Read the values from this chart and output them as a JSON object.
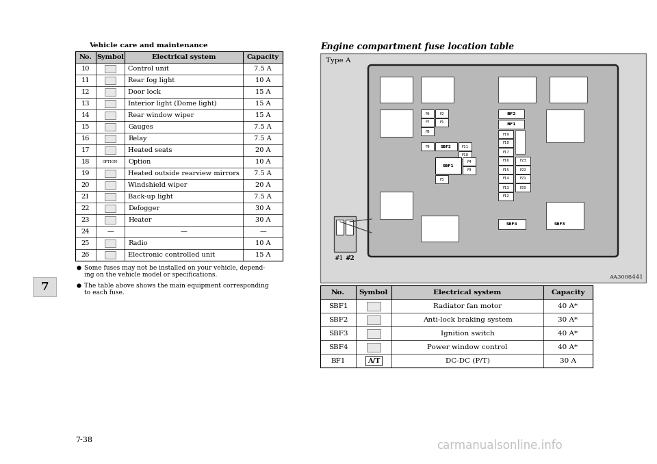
{
  "page_bg": "#ffffff",
  "section_header": "Vehicle care and maintenance",
  "page_number": "7-38",
  "chapter_number": "7",
  "table1_headers": [
    "No.",
    "Symbol",
    "Electrical system",
    "Capacity"
  ],
  "table1_rows": [
    [
      "10",
      "sym",
      "Control unit",
      "7.5 A"
    ],
    [
      "11",
      "sym",
      "Rear fog light",
      "10 A"
    ],
    [
      "12",
      "sym",
      "Door lock",
      "15 A"
    ],
    [
      "13",
      "sym",
      "Interior light (Dome light)",
      "15 A"
    ],
    [
      "14",
      "sym",
      "Rear window wiper",
      "15 A"
    ],
    [
      "15",
      "sym",
      "Gauges",
      "7.5 A"
    ],
    [
      "16",
      "sym",
      "Relay",
      "7.5 A"
    ],
    [
      "17",
      "sym",
      "Heated seats",
      "20 A"
    ],
    [
      "18",
      "OPTION",
      "Option",
      "10 A"
    ],
    [
      "19",
      "sym",
      "Heated outside rearview mirrors",
      "7.5 A"
    ],
    [
      "20",
      "sym",
      "Windshield wiper",
      "20 A"
    ],
    [
      "21",
      "sym",
      "Back-up light",
      "7.5 A"
    ],
    [
      "22",
      "sym",
      "Defogger",
      "30 A"
    ],
    [
      "23",
      "sym",
      "Heater",
      "30 A"
    ],
    [
      "24",
      "—",
      "—",
      "—"
    ],
    [
      "25",
      "sym",
      "Radio",
      "10 A"
    ],
    [
      "26",
      "sym",
      "Electronic controlled unit",
      "15 A"
    ]
  ],
  "bullet_texts": [
    "Some fuses may not be installed on your vehicle, depend-\ning on the vehicle model or specifications.",
    "The table above shows the main equipment corresponding\nto each fuse."
  ],
  "right_title": "Engine compartment fuse location table",
  "diagram_label": "Type A",
  "diagram_ref": "AA3008441",
  "table2_headers": [
    "No.",
    "Symbol",
    "Electrical system",
    "Capacity"
  ],
  "table2_rows": [
    [
      "SBF1",
      "sym",
      "Radiator fan motor",
      "40 A*"
    ],
    [
      "SBF2",
      "sym",
      "Anti-lock braking system",
      "30 A*"
    ],
    [
      "SBF3",
      "sym",
      "Ignition switch",
      "40 A*"
    ],
    [
      "SBF4",
      "sym",
      "Power window control",
      "40 A*"
    ],
    [
      "BF1",
      "A/T",
      "DC-DC (P/T)",
      "30 A"
    ]
  ],
  "watermark": "carmanualsonline.info",
  "table_border_color": "#000000",
  "header_bg": "#c8c8c8",
  "diagram_bg": "#e0e0e0",
  "inner_box_bg": "#c0c0c0"
}
